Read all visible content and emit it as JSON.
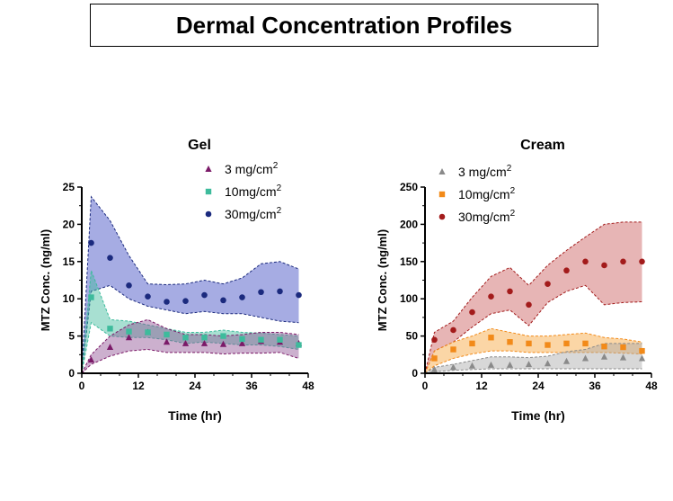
{
  "page_title": "Dermal Concentration Profiles",
  "chart_data": [
    {
      "type": "scatter",
      "title": "Gel",
      "xlabel": "Time (hr)",
      "ylabel": "MTZ Conc. (ng/ml)",
      "xlim": [
        0,
        48
      ],
      "ylim": [
        0,
        25
      ],
      "xticks": [
        0,
        12,
        24,
        36,
        48
      ],
      "yticks": [
        0,
        5,
        10,
        15,
        20,
        25
      ],
      "legend_position": "top-right",
      "x": [
        0,
        2,
        6,
        10,
        14,
        18,
        22,
        26,
        30,
        34,
        38,
        42,
        46
      ],
      "series": [
        {
          "name": "3 mg/cm",
          "sup": "2",
          "marker": "triangle",
          "color": "#7b1a68",
          "band_color": "#8f4f92",
          "values": [
            0,
            1.8,
            3.5,
            4.8,
            5.5,
            4.2,
            4.0,
            4.0,
            3.9,
            4.0,
            4.3,
            4.2,
            4.0
          ],
          "upper": [
            0,
            2.5,
            5.0,
            6.5,
            7.2,
            6.0,
            5.2,
            5.2,
            5.0,
            5.2,
            5.5,
            5.5,
            5.2
          ],
          "lower": [
            0,
            1.2,
            2.3,
            3.0,
            3.2,
            2.8,
            2.8,
            2.8,
            2.6,
            2.7,
            2.7,
            2.8,
            2.0
          ]
        },
        {
          "name": "10mg/cm",
          "sup": "2",
          "marker": "square",
          "color": "#3dbb9c",
          "band_color": "#3dbb9c",
          "values": [
            0,
            10.2,
            6.0,
            5.6,
            5.5,
            5.2,
            4.8,
            4.8,
            5.0,
            4.6,
            4.5,
            4.5,
            3.8
          ],
          "upper": [
            0,
            13.8,
            7.2,
            7.0,
            6.5,
            6.0,
            5.5,
            5.5,
            5.8,
            5.5,
            5.4,
            5.2,
            5.0
          ],
          "lower": [
            0,
            6.8,
            5.0,
            4.8,
            4.8,
            4.5,
            4.0,
            4.2,
            4.0,
            3.8,
            3.8,
            3.6,
            3.2
          ]
        },
        {
          "name": "30mg/cm",
          "sup": "2",
          "marker": "circle",
          "color": "#1b2a7e",
          "band_color": "#3a48c0",
          "values": [
            0,
            17.5,
            15.5,
            11.8,
            10.3,
            9.6,
            9.7,
            10.5,
            9.8,
            10.2,
            10.9,
            11.0,
            10.5
          ],
          "upper": [
            0,
            23.7,
            20.5,
            15.8,
            12.0,
            11.9,
            12.0,
            12.5,
            12.0,
            12.8,
            14.7,
            15.0,
            14.0
          ],
          "lower": [
            0,
            11.0,
            11.8,
            10.0,
            9.0,
            8.5,
            8.0,
            8.3,
            8.0,
            8.0,
            7.5,
            7.0,
            6.8
          ]
        }
      ]
    },
    {
      "type": "scatter",
      "title": "Cream",
      "xlabel": "Time (hr)",
      "ylabel": "MTZ Conc. (ng/ml)",
      "xlim": [
        0,
        48
      ],
      "ylim": [
        0,
        250
      ],
      "xticks": [
        0,
        12,
        24,
        36,
        48
      ],
      "yticks": [
        0,
        50,
        100,
        150,
        200,
        250
      ],
      "legend_position": "top-right",
      "x": [
        0,
        2,
        6,
        10,
        14,
        18,
        22,
        26,
        30,
        34,
        38,
        42,
        46
      ],
      "series": [
        {
          "name": "3 mg/cm",
          "sup": "2",
          "marker": "triangle",
          "color": "#8a8a8a",
          "band_color": "#a8a8a8",
          "values": [
            0,
            5,
            8,
            10,
            11,
            11,
            12,
            13,
            16,
            20,
            22,
            21,
            20
          ],
          "upper": [
            0,
            8,
            12,
            17,
            22,
            22,
            21,
            23,
            29,
            32,
            40,
            40,
            40
          ],
          "lower": [
            0,
            2,
            4,
            5,
            6,
            6,
            6,
            6,
            6,
            6,
            6,
            6,
            6
          ]
        },
        {
          "name": "10mg/cm",
          "sup": "2",
          "marker": "square",
          "color": "#f28a19",
          "band_color": "#f6a33a",
          "values": [
            0,
            20,
            32,
            40,
            48,
            42,
            40,
            38,
            40,
            40,
            36,
            35,
            30
          ],
          "upper": [
            0,
            30,
            42,
            50,
            60,
            55,
            50,
            50,
            52,
            54,
            48,
            46,
            42
          ],
          "lower": [
            0,
            10,
            20,
            26,
            30,
            30,
            28,
            28,
            28,
            28,
            28,
            27,
            26
          ]
        },
        {
          "name": "30mg/cm",
          "sup": "2",
          "marker": "circle",
          "color": "#a31b1b",
          "band_color": "#c95a5a",
          "values": [
            0,
            45,
            58,
            82,
            103,
            110,
            92,
            120,
            138,
            150,
            145,
            150,
            150
          ],
          "upper": [
            0,
            55,
            70,
            102,
            130,
            142,
            118,
            145,
            165,
            183,
            200,
            203,
            203
          ],
          "lower": [
            0,
            30,
            42,
            62,
            80,
            85,
            64,
            95,
            110,
            118,
            92,
            95,
            96
          ]
        }
      ]
    }
  ]
}
